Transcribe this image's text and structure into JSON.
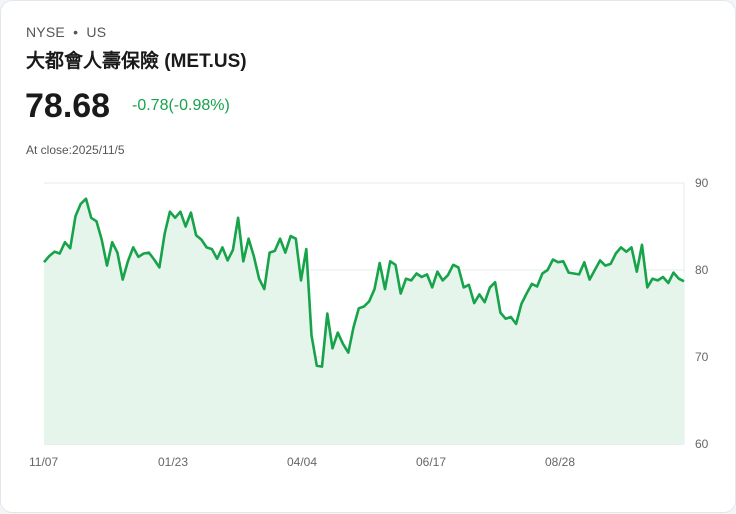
{
  "header": {
    "exchange": "NYSE",
    "separator": "•",
    "market": "US",
    "title": "大都會人壽保險 (MET.US)"
  },
  "quote": {
    "price": "78.68",
    "change": "-0.78(-0.98%)",
    "change_color": "#16a34a",
    "at_close": "At close:2025/11/5"
  },
  "chart_data": {
    "type": "area",
    "title": "MET.US price",
    "xlabel": "",
    "ylabel": "",
    "ylim": [
      60,
      90
    ],
    "yticks": [
      90,
      80,
      70,
      60
    ],
    "xticks": [
      "11/07",
      "01/23",
      "04/04",
      "06/17",
      "08/28"
    ],
    "grid": true,
    "line_color": "#16a34a",
    "fill_color": "#e6f5ec",
    "values": [
      80.9,
      81.6,
      82.1,
      81.9,
      83.2,
      82.5,
      86.2,
      87.6,
      88.2,
      86.0,
      85.6,
      83.5,
      80.5,
      83.2,
      82.0,
      78.9,
      81.0,
      82.6,
      81.5,
      81.9,
      82.0,
      81.2,
      80.3,
      84.2,
      86.7,
      86.0,
      86.7,
      85.0,
      86.6,
      84.0,
      83.5,
      82.6,
      82.4,
      81.3,
      82.6,
      81.1,
      82.3,
      86.0,
      81.0,
      83.6,
      81.6,
      79.0,
      77.8,
      82.0,
      82.2,
      83.6,
      82.0,
      83.9,
      83.6,
      78.8,
      82.4,
      72.5,
      69.0,
      68.9,
      75.0,
      71.0,
      72.8,
      71.5,
      70.5,
      73.4,
      75.6,
      75.8,
      76.4,
      77.8,
      80.8,
      77.8,
      81.0,
      80.6,
      77.3,
      79.0,
      78.8,
      79.6,
      79.2,
      79.5,
      78.0,
      79.8,
      78.8,
      79.4,
      80.6,
      80.3,
      78.0,
      78.3,
      76.2,
      77.2,
      76.3,
      78.0,
      78.6,
      75.1,
      74.4,
      74.6,
      73.8,
      76.1,
      77.3,
      78.4,
      78.1,
      79.6,
      80.0,
      81.2,
      80.9,
      81.0,
      79.7,
      79.6,
      79.5,
      80.9,
      78.9,
      80.0,
      81.1,
      80.5,
      80.7,
      81.9,
      82.6,
      82.1,
      82.6,
      79.8,
      82.9,
      78.0,
      79.0,
      78.8,
      79.2,
      78.5,
      79.7,
      79.0,
      78.7
    ]
  }
}
